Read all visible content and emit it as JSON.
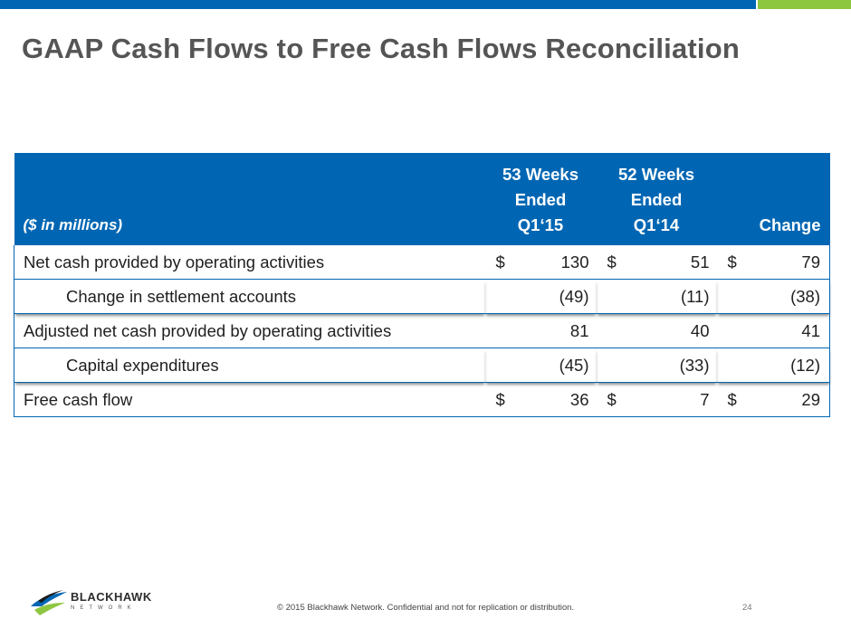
{
  "title": "GAAP Cash Flows to Free Cash Flows Reconciliation",
  "table": {
    "label_header": "($ in millions)",
    "col1_header": [
      "53 Weeks",
      "Ended",
      "Q1‘15"
    ],
    "col2_header": [
      "52 Weeks",
      "Ended",
      "Q1‘14"
    ],
    "change_header": "Change",
    "rows": [
      {
        "label": "Net cash provided by operating activities",
        "c1": "130",
        "c1_cur": "$",
        "c2": "51",
        "c2_cur": "$",
        "c3": "79",
        "c3_cur": "$"
      },
      {
        "label": "Change in settlement accounts",
        "c1": "(49)",
        "c2": "(11)",
        "c3": "(38)"
      },
      {
        "label": "Adjusted net cash provided by operating activities",
        "c1": "81",
        "c2": "40",
        "c3": "41"
      },
      {
        "label": "Capital expenditures",
        "c1": "(45)",
        "c2": "(33)",
        "c3": "(12)"
      },
      {
        "label": "Free cash flow",
        "c1": "36",
        "c1_cur": "$",
        "c2": "7",
        "c2_cur": "$",
        "c3": "29",
        "c3_cur": "$"
      }
    ]
  },
  "logo": {
    "name": "BLACKHAWK",
    "sub": "NETWORK"
  },
  "footer": "© 2015 Blackhawk Network. Confidential and not for replication or distribution.",
  "page_number": "24",
  "colors": {
    "primary": "#0066b3",
    "accent": "#8dc63f",
    "title": "#555555"
  }
}
